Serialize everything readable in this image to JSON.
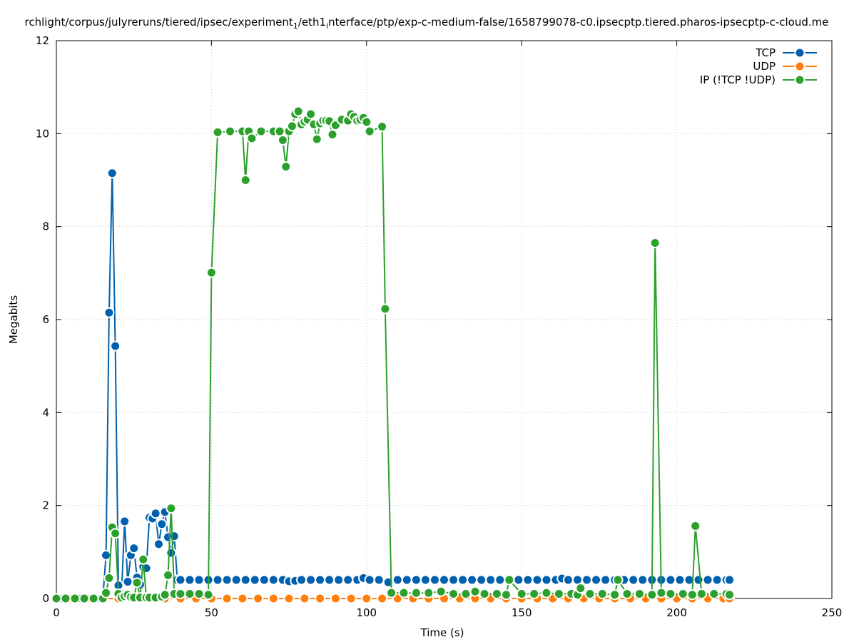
{
  "chart_data": {
    "type": "line",
    "title_parts": {
      "prefix": "rchlight/corpus/julyreruns/tiered/ipsec/experiment",
      "sub1": "1",
      "mid": "/eth1",
      "sub2": "i",
      "suffix": "nterface/ptp/exp-c-medium-false/1658799078-c0.ipsecptp.tiered.pharos-ipsecptp-c-cloud.me"
    },
    "xlabel": "Time (s)",
    "ylabel": "Megabits",
    "xlim": [
      0,
      250
    ],
    "ylim": [
      0,
      12
    ],
    "xticks": [
      0,
      50,
      100,
      150,
      200,
      250
    ],
    "yticks": [
      0,
      2,
      4,
      6,
      8,
      10,
      12
    ],
    "grid": true,
    "legend_position": "top-right",
    "series": [
      {
        "name": "TCP",
        "color": "#0060ad",
        "points": [
          [
            0,
            0
          ],
          [
            2,
            0
          ],
          [
            4,
            0
          ],
          [
            6,
            0
          ],
          [
            8,
            0
          ],
          [
            10,
            0
          ],
          [
            12,
            0
          ],
          [
            14,
            0
          ],
          [
            15,
            0.02
          ],
          [
            16,
            0.93
          ],
          [
            17,
            6.15
          ],
          [
            18,
            9.15
          ],
          [
            19,
            5.43
          ],
          [
            20,
            0.28
          ],
          [
            21,
            0.1
          ],
          [
            22,
            1.66
          ],
          [
            23,
            0.36
          ],
          [
            24,
            0.93
          ],
          [
            25,
            1.08
          ],
          [
            26,
            0.45
          ],
          [
            27,
            0.3
          ],
          [
            28,
            0.68
          ],
          [
            29,
            0.65
          ],
          [
            30,
            1.74
          ],
          [
            31,
            1.72
          ],
          [
            32,
            1.83
          ],
          [
            33,
            1.17
          ],
          [
            34,
            1.6
          ],
          [
            35,
            1.86
          ],
          [
            36,
            1.32
          ],
          [
            37,
            0.98
          ],
          [
            38,
            1.34
          ],
          [
            39,
            0.4
          ],
          [
            40,
            0.4
          ],
          [
            43,
            0.4
          ],
          [
            46,
            0.4
          ],
          [
            49,
            0.4
          ],
          [
            52,
            0.4
          ],
          [
            55,
            0.4
          ],
          [
            58,
            0.4
          ],
          [
            61,
            0.4
          ],
          [
            64,
            0.4
          ],
          [
            67,
            0.4
          ],
          [
            70,
            0.4
          ],
          [
            73,
            0.4
          ],
          [
            75,
            0.37
          ],
          [
            77,
            0.38
          ],
          [
            79,
            0.4
          ],
          [
            82,
            0.4
          ],
          [
            85,
            0.4
          ],
          [
            88,
            0.4
          ],
          [
            91,
            0.4
          ],
          [
            94,
            0.4
          ],
          [
            97,
            0.4
          ],
          [
            99,
            0.44
          ],
          [
            101,
            0.4
          ],
          [
            104,
            0.4
          ],
          [
            107,
            0.35
          ],
          [
            110,
            0.4
          ],
          [
            113,
            0.4
          ],
          [
            116,
            0.4
          ],
          [
            119,
            0.4
          ],
          [
            122,
            0.4
          ],
          [
            125,
            0.4
          ],
          [
            128,
            0.4
          ],
          [
            131,
            0.4
          ],
          [
            134,
            0.4
          ],
          [
            137,
            0.4
          ],
          [
            140,
            0.4
          ],
          [
            143,
            0.4
          ],
          [
            146,
            0.4
          ],
          [
            149,
            0.4
          ],
          [
            152,
            0.4
          ],
          [
            155,
            0.4
          ],
          [
            158,
            0.4
          ],
          [
            161,
            0.4
          ],
          [
            163,
            0.43
          ],
          [
            165,
            0.4
          ],
          [
            168,
            0.4
          ],
          [
            171,
            0.4
          ],
          [
            174,
            0.4
          ],
          [
            177,
            0.4
          ],
          [
            180,
            0.4
          ],
          [
            183,
            0.4
          ],
          [
            186,
            0.4
          ],
          [
            189,
            0.4
          ],
          [
            192,
            0.4
          ],
          [
            195,
            0.4
          ],
          [
            198,
            0.4
          ],
          [
            201,
            0.4
          ],
          [
            204,
            0.4
          ],
          [
            207,
            0.4
          ],
          [
            210,
            0.4
          ],
          [
            213,
            0.4
          ],
          [
            216,
            0.4
          ],
          [
            217,
            0.4
          ]
        ]
      },
      {
        "name": "UDP",
        "color": "#ff7f0e",
        "points": [
          [
            0,
            0
          ],
          [
            5,
            0
          ],
          [
            10,
            0
          ],
          [
            15,
            0
          ],
          [
            20,
            0
          ],
          [
            25,
            0
          ],
          [
            30,
            0
          ],
          [
            35,
            0
          ],
          [
            40,
            0
          ],
          [
            45,
            0
          ],
          [
            50,
            0
          ],
          [
            55,
            0
          ],
          [
            60,
            0
          ],
          [
            65,
            0
          ],
          [
            70,
            0
          ],
          [
            75,
            0
          ],
          [
            80,
            0
          ],
          [
            85,
            0
          ],
          [
            90,
            0
          ],
          [
            95,
            0
          ],
          [
            100,
            0
          ],
          [
            105,
            0
          ],
          [
            110,
            0
          ],
          [
            115,
            0
          ],
          [
            120,
            0
          ],
          [
            125,
            0
          ],
          [
            130,
            0
          ],
          [
            135,
            0
          ],
          [
            140,
            0
          ],
          [
            145,
            0
          ],
          [
            150,
            0
          ],
          [
            155,
            0
          ],
          [
            160,
            0
          ],
          [
            165,
            0
          ],
          [
            170,
            0
          ],
          [
            175,
            0
          ],
          [
            180,
            0
          ],
          [
            185,
            0
          ],
          [
            190,
            0
          ],
          [
            195,
            0
          ],
          [
            200,
            0
          ],
          [
            205,
            0
          ],
          [
            210,
            0
          ],
          [
            215,
            0
          ],
          [
            217,
            0
          ]
        ]
      },
      {
        "name": "IP (!TCP  !UDP)",
        "color": "#2ca02c",
        "points": [
          [
            0,
            0
          ],
          [
            3,
            0
          ],
          [
            6,
            0
          ],
          [
            9,
            0
          ],
          [
            12,
            0
          ],
          [
            15,
            0
          ],
          [
            16,
            0.12
          ],
          [
            17,
            0.44
          ],
          [
            18,
            1.53
          ],
          [
            19,
            1.4
          ],
          [
            20,
            0.1
          ],
          [
            21,
            0.02
          ],
          [
            22,
            0.05
          ],
          [
            23,
            0.08
          ],
          [
            24,
            0.03
          ],
          [
            25,
            0.02
          ],
          [
            26,
            0.34
          ],
          [
            27,
            0.02
          ],
          [
            28,
            0.84
          ],
          [
            29,
            0.02
          ],
          [
            30,
            0.02
          ],
          [
            32,
            0.02
          ],
          [
            34,
            0.04
          ],
          [
            35,
            0.08
          ],
          [
            36,
            0.5
          ],
          [
            37,
            1.94
          ],
          [
            38,
            0.1
          ],
          [
            40,
            0.1
          ],
          [
            43,
            0.1
          ],
          [
            46,
            0.1
          ],
          [
            49,
            0.08
          ],
          [
            50,
            7.01
          ],
          [
            52,
            10.03
          ],
          [
            56,
            10.05
          ],
          [
            60,
            10.05
          ],
          [
            61,
            9.0
          ],
          [
            62,
            10.05
          ],
          [
            63,
            9.9
          ],
          [
            66,
            10.05
          ],
          [
            70,
            10.05
          ],
          [
            72,
            10.05
          ],
          [
            73,
            9.86
          ],
          [
            74,
            9.29
          ],
          [
            75,
            10.05
          ],
          [
            76,
            10.16
          ],
          [
            77,
            10.42
          ],
          [
            78,
            10.48
          ],
          [
            79,
            10.2
          ],
          [
            80,
            10.26
          ],
          [
            81,
            10.3
          ],
          [
            82,
            10.42
          ],
          [
            83,
            10.2
          ],
          [
            84,
            9.88
          ],
          [
            85,
            10.22
          ],
          [
            86,
            10.28
          ],
          [
            87,
            10.28
          ],
          [
            88,
            10.27
          ],
          [
            89,
            9.98
          ],
          [
            90,
            10.18
          ],
          [
            92,
            10.3
          ],
          [
            94,
            10.28
          ],
          [
            95,
            10.42
          ],
          [
            96,
            10.36
          ],
          [
            97,
            10.28
          ],
          [
            98,
            10.3
          ],
          [
            99,
            10.34
          ],
          [
            100,
            10.25
          ],
          [
            101,
            10.05
          ],
          [
            105,
            10.15
          ],
          [
            106,
            6.23
          ],
          [
            108,
            0.12
          ],
          [
            112,
            0.12
          ],
          [
            116,
            0.12
          ],
          [
            120,
            0.12
          ],
          [
            124,
            0.15
          ],
          [
            128,
            0.1
          ],
          [
            132,
            0.1
          ],
          [
            135,
            0.15
          ],
          [
            138,
            0.1
          ],
          [
            142,
            0.1
          ],
          [
            145,
            0.08
          ],
          [
            146,
            0.4
          ],
          [
            150,
            0.1
          ],
          [
            154,
            0.1
          ],
          [
            158,
            0.12
          ],
          [
            162,
            0.1
          ],
          [
            166,
            0.1
          ],
          [
            168,
            0.08
          ],
          [
            169,
            0.22
          ],
          [
            172,
            0.1
          ],
          [
            176,
            0.1
          ],
          [
            180,
            0.08
          ],
          [
            181,
            0.4
          ],
          [
            184,
            0.1
          ],
          [
            188,
            0.1
          ],
          [
            192,
            0.08
          ],
          [
            193,
            7.65
          ],
          [
            195,
            0.12
          ],
          [
            198,
            0.1
          ],
          [
            202,
            0.1
          ],
          [
            205,
            0.08
          ],
          [
            206,
            1.56
          ],
          [
            208,
            0.1
          ],
          [
            212,
            0.1
          ],
          [
            216,
            0.1
          ],
          [
            217,
            0.08
          ]
        ]
      }
    ]
  }
}
